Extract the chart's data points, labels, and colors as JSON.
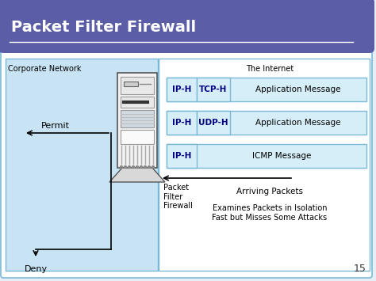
{
  "title": "Packet Filter Firewall",
  "title_bg": "#5b5ea6",
  "title_color": "#ffffff",
  "slide_bg": "#e8eef5",
  "content_bg": "#ffffff",
  "corp_net_bg": "#c8e4f4",
  "packet_box_bg": "#d6eef8",
  "packet_box_border": "#7ab8d8",
  "corp_label": "Corporate Network",
  "internet_label": "The Internet",
  "permit_label": "Permit",
  "deny_label": "Deny",
  "firewall_label": "Packet\nFilter\nFirewall",
  "arriving_label": "Arriving Packets",
  "examine_label": "Examines Packets in Isolation\nFast but Misses Some Attacks",
  "page_num": "15",
  "packets": [
    {
      "iph": "IP-H",
      "proto": "TCP-H",
      "msg": "Application Message"
    },
    {
      "iph": "IP-H",
      "proto": "UDP-H",
      "msg": "Application Message"
    },
    {
      "iph": "IP-H",
      "proto": null,
      "msg": "ICMP Message"
    }
  ]
}
